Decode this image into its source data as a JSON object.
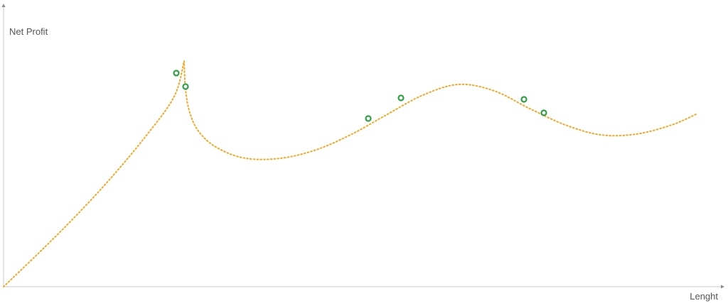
{
  "colors": {
    "line": "#F5A623",
    "marker": "#2EA043"
  },
  "chart_data": {
    "type": "line",
    "title": "",
    "xlabel": "Lenght",
    "ylabel": "Net Profit",
    "grid": false,
    "legend": "none",
    "xlim": [
      0,
      1000
    ],
    "ylim": [
      0,
      330
    ],
    "curve": [
      [
        0,
        0
      ],
      [
        50,
        48
      ],
      [
        100,
        98
      ],
      [
        150,
        152
      ],
      [
        200,
        212
      ],
      [
        240,
        268
      ],
      [
        254,
        318
      ],
      [
        256,
        278
      ],
      [
        262,
        245
      ],
      [
        275,
        218
      ],
      [
        300,
        196
      ],
      [
        340,
        181
      ],
      [
        390,
        181
      ],
      [
        440,
        193
      ],
      [
        490,
        215
      ],
      [
        540,
        243
      ],
      [
        590,
        270
      ],
      [
        640,
        285
      ],
      [
        690,
        276
      ],
      [
        740,
        251
      ],
      [
        790,
        228
      ],
      [
        840,
        214
      ],
      [
        890,
        215
      ],
      [
        940,
        228
      ],
      [
        974,
        243
      ]
    ],
    "markers": [
      [
        243,
        301
      ],
      [
        256,
        282
      ],
      [
        513,
        237
      ],
      [
        559,
        266
      ],
      [
        732,
        264
      ],
      [
        760,
        245
      ]
    ]
  }
}
